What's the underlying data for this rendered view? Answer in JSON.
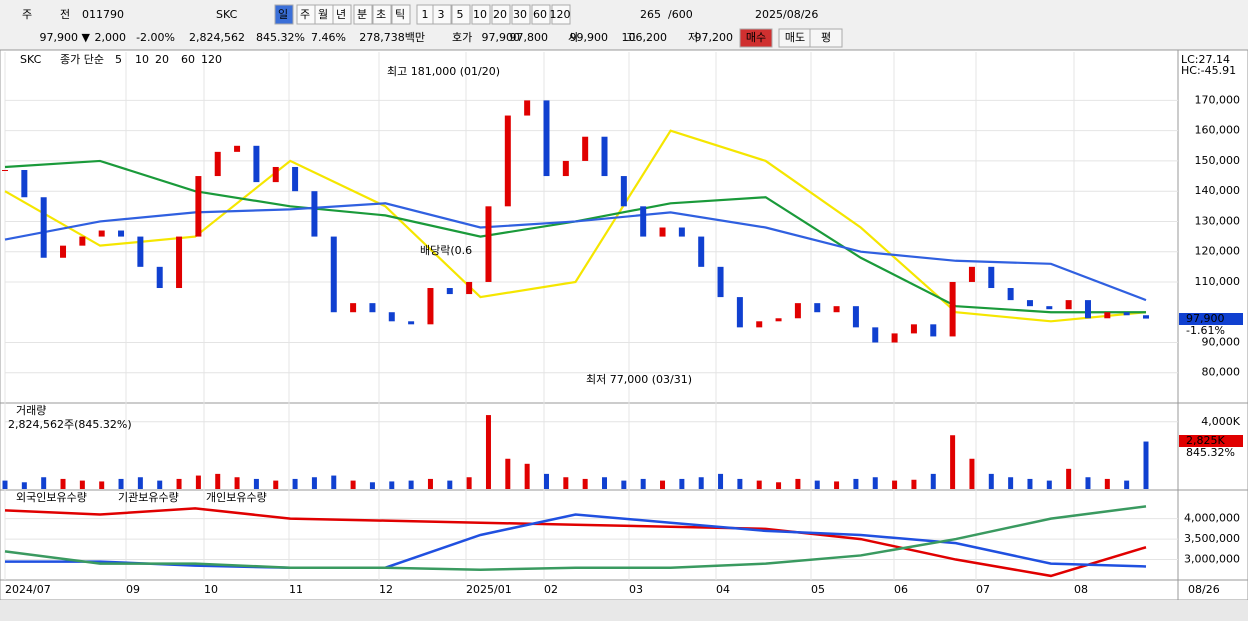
{
  "toolbar": {
    "row1": [
      "주",
      "전",
      "011790",
      "SKC",
      "일",
      "주",
      "월",
      "년",
      "분",
      "초",
      "틱",
      "1",
      "3",
      "5",
      "10",
      "20",
      "30",
      "60",
      "120",
      "265",
      "/600",
      "2025/08/26"
    ],
    "row2": [
      "97,900 ▼",
      "2,000",
      "-2.00%",
      "2,824,562",
      "845.32%",
      "7.46%",
      "278,738백만",
      "호가",
      "97,900",
      "97,800",
      "시",
      "99,900",
      "고",
      "106,200",
      "저",
      "97,200",
      "매수",
      "매도",
      "평"
    ]
  },
  "price_chart": {
    "type": "candlestick",
    "name": "SKC",
    "legend_title": "종가 단순",
    "ma_names": [
      "5",
      "10",
      "20",
      "60",
      "120"
    ],
    "high_note": "최고 181,000 (01/20)",
    "low_note": "최저 77,000 (03/31)",
    "event_note": "배당락(0.6",
    "lc": "LC:27.14",
    "hc": "HC:-45.91",
    "last_label": "97,900",
    "last_change": "-1.61%",
    "ylim": [
      70000,
      186000
    ],
    "yticks": [
      {
        "value": 80000,
        "label": "80,000"
      },
      {
        "value": 90000,
        "label": "90,000"
      },
      {
        "value": 110000,
        "label": "110,000"
      },
      {
        "value": 120000,
        "label": "120,000"
      },
      {
        "value": 130000,
        "label": "130,000"
      },
      {
        "value": 140000,
        "label": "140,000"
      },
      {
        "value": 150000,
        "label": "150,000"
      },
      {
        "value": 160000,
        "label": "160,000"
      },
      {
        "value": 170000,
        "label": "170,000"
      }
    ],
    "close": [
      147000,
      138000,
      118000,
      122000,
      125000,
      127000,
      125000,
      115000,
      108000,
      125000,
      145000,
      153000,
      155000,
      143000,
      148000,
      140000,
      125000,
      100000,
      103000,
      100000,
      97000,
      96000,
      108000,
      106000,
      110000,
      135000,
      165000,
      170000,
      145000,
      150000,
      158000,
      145000,
      135000,
      125000,
      128000,
      125000,
      115000,
      105000,
      95000,
      97000,
      98000,
      103000,
      100000,
      102000,
      95000,
      90000,
      93000,
      96000,
      92000,
      110000,
      115000,
      108000,
      104000,
      102000,
      101000,
      104000,
      98000,
      100000,
      99000,
      97900
    ],
    "ma_lines": [
      {
        "name": "20",
        "color": "#f5e600",
        "values": [
          140000,
          122000,
          125000,
          150000,
          135000,
          105000,
          110000,
          160000,
          150000,
          128000,
          100000,
          97000,
          100000
        ]
      },
      {
        "name": "60",
        "color": "#1a9a3a",
        "values": [
          148000,
          150000,
          140000,
          135000,
          132000,
          125000,
          130000,
          136000,
          138000,
          118000,
          102000,
          100000,
          100000
        ]
      },
      {
        "name": "120",
        "color": "#3060e0",
        "values": [
          124000,
          130000,
          133000,
          134000,
          136000,
          128000,
          130000,
          133000,
          128000,
          120000,
          117000,
          116000,
          104000
        ]
      }
    ]
  },
  "volume_chart": {
    "type": "bar",
    "title": "거래량",
    "info": "2,824,562주(845.32%)",
    "ylim": [
      0,
      5000
    ],
    "yticks": [
      {
        "value": 4000,
        "label": "4,000K"
      }
    ],
    "last_label": "2,825K",
    "last_change": "845.32%",
    "values": [
      500,
      400,
      700,
      600,
      500,
      450,
      600,
      700,
      500,
      600,
      800,
      900,
      700,
      600,
      500,
      600,
      700,
      800,
      500,
      400,
      450,
      500,
      600,
      500,
      700,
      4400,
      1800,
      1500,
      900,
      700,
      600,
      700,
      500,
      600,
      500,
      600,
      700,
      900,
      600,
      500,
      400,
      600,
      500,
      450,
      600,
      700,
      500,
      550,
      900,
      3200,
      1800,
      900,
      700,
      600,
      500,
      1200,
      700,
      600,
      500,
      2825
    ]
  },
  "holding_chart": {
    "type": "line",
    "ylim": [
      2500000,
      4650000
    ],
    "yticks": [
      {
        "value": 3000000,
        "label": "3,000,000"
      },
      {
        "value": 3500000,
        "label": "3,500,000"
      },
      {
        "value": 4000000,
        "label": "4,000,000"
      }
    ],
    "series": [
      {
        "name": "외국인보유수량",
        "color": "#e00000",
        "values": [
          4200000,
          4100000,
          4250000,
          4000000,
          3950000,
          3900000,
          3850000,
          3800000,
          3750000,
          3500000,
          3000000,
          2600000,
          3300000
        ]
      },
      {
        "name": "기관보유수량",
        "color": "#2050e0",
        "values": [
          2950000,
          2950000,
          2850000,
          2800000,
          2800000,
          3600000,
          4100000,
          3900000,
          3700000,
          3600000,
          3400000,
          2900000,
          2830000
        ]
      },
      {
        "name": "개인보유수량",
        "color": "#3a9a60",
        "values": [
          3200000,
          2900000,
          2900000,
          2800000,
          2800000,
          2750000,
          2800000,
          2800000,
          2900000,
          3100000,
          3500000,
          4000000,
          4300000
        ]
      }
    ]
  },
  "x_axis": {
    "labels": [
      "2024/07",
      "09",
      "10",
      "11",
      "12",
      "2025/01",
      "02",
      "03",
      "04",
      "05",
      "06",
      "07",
      "08"
    ],
    "end_label": "08/26"
  }
}
